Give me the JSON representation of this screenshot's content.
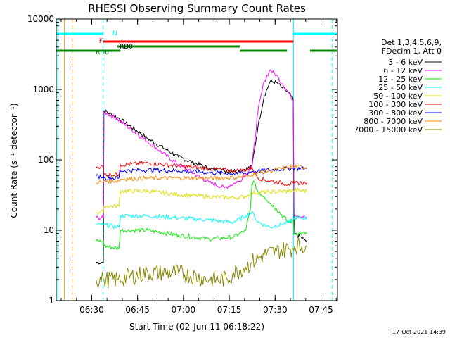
{
  "chart_data": {
    "type": "line",
    "title": "RHESSI Observing Summary Count Rates",
    "xlabel": "Start Time (02-Jun-11 06:18:22)",
    "ylabel": "Count Rate (s⁻¹ detector⁻¹)",
    "yscale": "log",
    "ylim": [
      1,
      10000
    ],
    "xlim_minutes": [
      0,
      92
    ],
    "x_unit": "minutes after 06:18:22",
    "y_ticks": [
      1,
      10,
      100,
      1000,
      10000
    ],
    "y_tick_labels": [
      "1",
      "10",
      "100",
      "1000",
      "10000"
    ],
    "x_ticks": [
      11.6,
      26.6,
      41.6,
      56.6,
      71.6,
      86.6
    ],
    "x_tick_labels": [
      "06:30",
      "06:45",
      "07:00",
      "07:15",
      "07:30",
      "07:45"
    ],
    "legend_header": [
      "Det 1,3,4,5,6,9,",
      "FDecim 1, Att 0"
    ],
    "series": [
      {
        "name": "3 - 6 keV",
        "color": "#000000",
        "x": [
          13.0,
          15.4,
          15.6,
          20,
          30,
          40,
          50,
          55,
          60,
          64,
          66,
          68,
          70,
          72,
          74,
          76,
          77.5,
          77.8,
          82
        ],
        "y": [
          3.5,
          3.5,
          500,
          400,
          200,
          110,
          75,
          70,
          70,
          80,
          300,
          800,
          1300,
          1250,
          1050,
          900,
          720,
          9,
          7
        ]
      },
      {
        "name": "6 - 12 keV",
        "color": "#ff00ff",
        "x": [
          13.0,
          15.4,
          15.6,
          20,
          30,
          40,
          50,
          55,
          60,
          64,
          66,
          68,
          70,
          72,
          74,
          76,
          77.5,
          77.8,
          82
        ],
        "y": [
          15,
          15,
          480,
          380,
          180,
          85,
          48,
          40,
          50,
          80,
          500,
          1300,
          1900,
          1600,
          1200,
          900,
          700,
          17,
          15
        ]
      },
      {
        "name": "12 - 25 keV",
        "color": "#00ee00",
        "x": [
          13.0,
          15.4,
          15.6,
          20.5,
          21,
          30,
          40,
          50,
          58,
          62,
          63.5,
          64,
          64.5,
          66,
          68,
          72,
          76,
          77.5,
          77.8,
          82
        ],
        "y": [
          7,
          7,
          6,
          5.5,
          10,
          10,
          8.5,
          7.5,
          8,
          10,
          20,
          45,
          50,
          35,
          30,
          20,
          13,
          14,
          9,
          9
        ]
      },
      {
        "name": "25 - 50 keV",
        "color": "#00ffff",
        "x": [
          13.0,
          15.4,
          15.6,
          20.5,
          21,
          30,
          40,
          50,
          58,
          62,
          64,
          66,
          70,
          76,
          77.5,
          77.8,
          82
        ],
        "y": [
          12,
          12,
          12,
          11,
          16,
          16,
          15,
          14,
          13,
          16,
          18,
          13,
          11,
          13,
          14,
          15,
          15
        ]
      },
      {
        "name": "50 - 100 keV",
        "color": "#dddd00",
        "x": [
          13.0,
          15.4,
          15.6,
          20.5,
          21,
          30,
          40,
          50,
          58,
          62,
          64,
          70,
          76,
          77.5,
          78,
          82
        ],
        "y": [
          18,
          18,
          22,
          22,
          36,
          36,
          32,
          30,
          29,
          30,
          34,
          35,
          36,
          37,
          37,
          36
        ]
      },
      {
        "name": "100 - 300 keV",
        "color": "#ee0000",
        "x": [
          13.0,
          15.4,
          15.6,
          20.5,
          21,
          30,
          40,
          50,
          58,
          62,
          64,
          66,
          70,
          76,
          77.5,
          78,
          82
        ],
        "y": [
          80,
          80,
          62,
          62,
          85,
          90,
          82,
          75,
          70,
          72,
          78,
          55,
          50,
          45,
          47,
          47,
          47
        ]
      },
      {
        "name": "300 - 800 keV",
        "color": "#0000ff",
        "x": [
          13.0,
          15.4,
          15.6,
          20.5,
          21,
          30,
          40,
          50,
          58,
          62,
          64,
          66,
          70,
          76,
          77.5,
          78,
          82
        ],
        "y": [
          58,
          58,
          55,
          55,
          70,
          72,
          70,
          66,
          64,
          65,
          68,
          70,
          72,
          75,
          76,
          76,
          75
        ]
      },
      {
        "name": "800 - 7000 keV",
        "color": "#ff8800",
        "x": [
          13.0,
          15.4,
          15.6,
          20.5,
          21,
          30,
          40,
          50,
          58,
          62,
          64,
          66,
          70,
          76,
          77.5,
          78,
          82
        ],
        "y": [
          48,
          48,
          50,
          50,
          53,
          55,
          55,
          55,
          56,
          58,
          62,
          65,
          70,
          78,
          80,
          80,
          78
        ]
      },
      {
        "name": "7000 - 15000 keV",
        "color": "#888800",
        "x": [
          13.0,
          15.4,
          15.6,
          20,
          30,
          40,
          50,
          56,
          58,
          62,
          64,
          68,
          72,
          76,
          77.5,
          78,
          82
        ],
        "y": [
          2,
          2,
          2,
          2,
          2.5,
          2.5,
          2,
          2,
          2.5,
          3,
          3.5,
          4.5,
          5,
          5.5,
          5.5,
          6,
          6
        ]
      }
    ],
    "state_bars": [
      {
        "label": "N",
        "color": "#00ffff",
        "label_color": "#00ffff",
        "segments": [
          [
            0,
            15.2
          ],
          [
            77.6,
            92
          ]
        ]
      },
      {
        "label": "F",
        "color": "#ff0000",
        "label_color": "#ff0000",
        "segments": [
          [
            15.4,
            77.6
          ]
        ]
      },
      {
        "label": "RD0",
        "color": "#008800",
        "label_color": "#000000",
        "segments": [
          [
            20,
            60
          ]
        ]
      },
      {
        "label": "RD6",
        "color": "#008800",
        "label_color": "#008800",
        "segments": [
          [
            0,
            15.2
          ],
          [
            15.4,
            21
          ],
          [
            60,
            75.5
          ],
          [
            83,
            92
          ]
        ]
      }
    ],
    "vertical_markers": [
      {
        "x": 0.5,
        "color": "#00ffff",
        "style": "solid"
      },
      {
        "x": 2.7,
        "color": "#ff8800",
        "style": "solid"
      },
      {
        "x": 5.2,
        "color": "#ff8800",
        "style": "dashed"
      },
      {
        "x": 15.3,
        "color": "#00ffff",
        "style": "dashed"
      },
      {
        "x": 77.6,
        "color": "#00ffff",
        "style": "solid"
      },
      {
        "x": 90.2,
        "color": "#00ffff",
        "style": "dashed"
      }
    ],
    "timestamp": "17-Oct-2021 14:39"
  }
}
